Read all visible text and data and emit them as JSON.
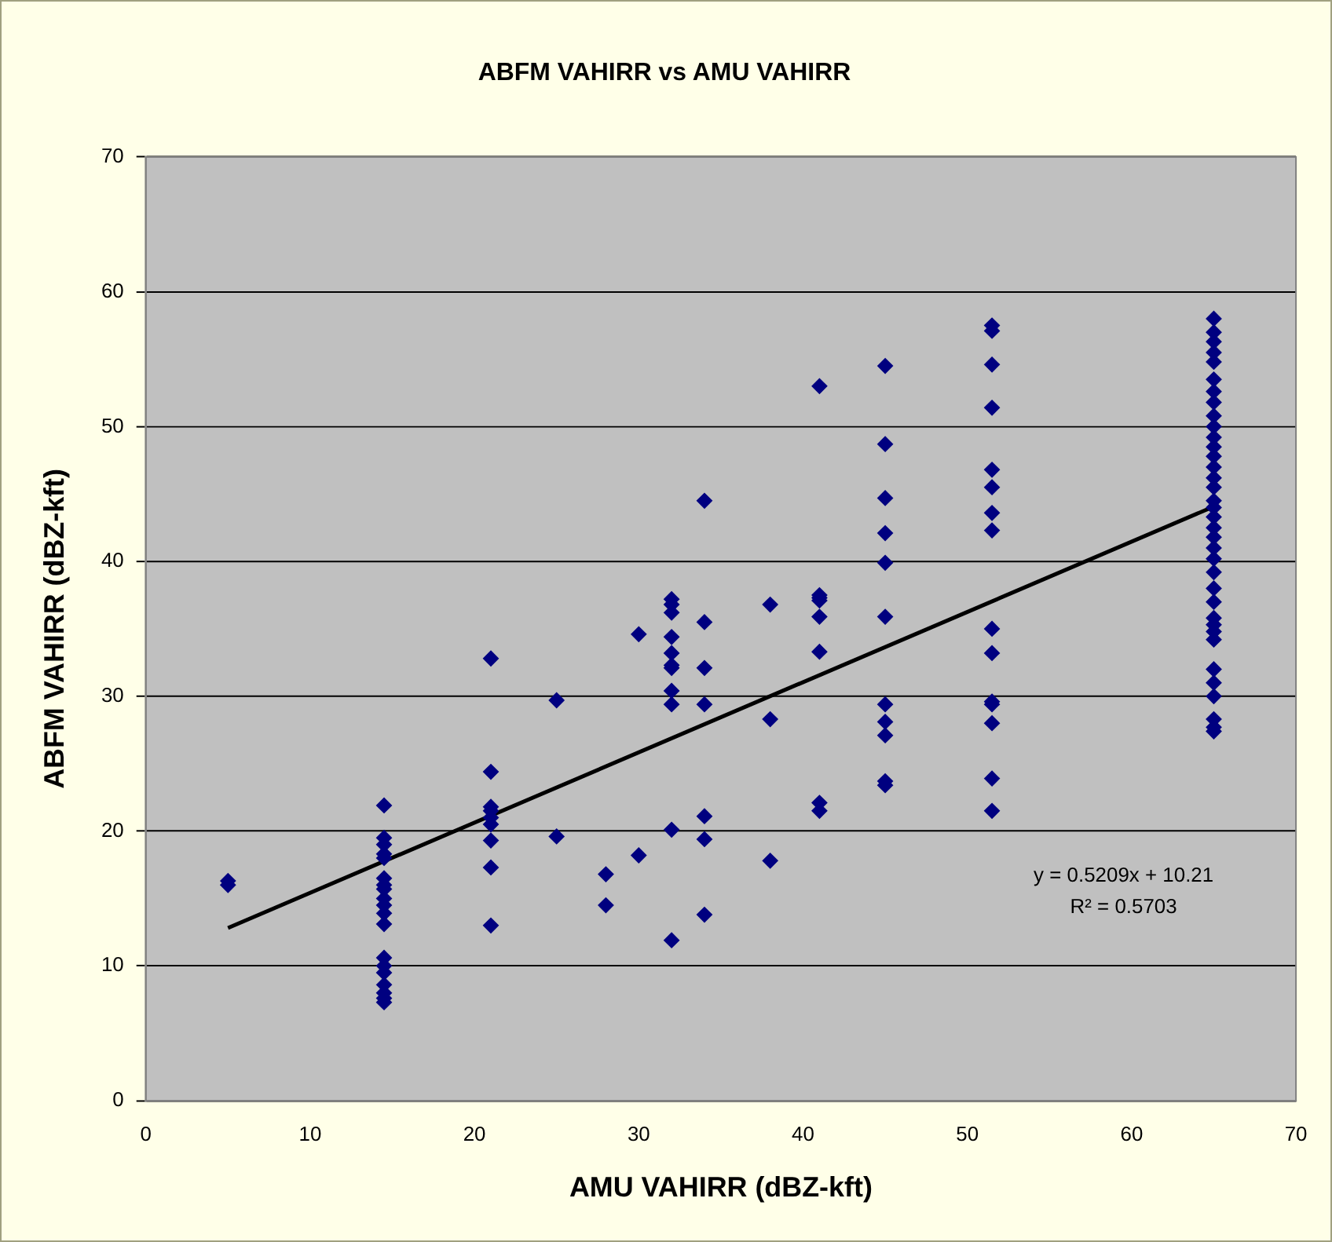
{
  "chart_data": {
    "type": "scatter",
    "title": "ABFM VAHIRR vs AMU VAHIRR",
    "xlabel": "AMU VAHIRR (dBZ-kft)",
    "ylabel": "ABFM VAHIRR (dBZ-kft)",
    "xlim": [
      0,
      70
    ],
    "xticks": [
      0,
      10,
      20,
      30,
      40,
      50,
      60,
      70
    ],
    "ylim": [
      0,
      70
    ],
    "yticks": [
      0,
      10,
      20,
      30,
      40,
      50,
      60,
      70
    ],
    "grid": "y",
    "legend": false,
    "marker": "diamond",
    "annotations": [
      "y = 0.5209x + 10.21",
      "R² = 0.5703"
    ],
    "series": [
      {
        "color": "#000080",
        "x": [
          5,
          5,
          14.5,
          14.5,
          14.5,
          14.5,
          14.5,
          14.5,
          14.5,
          14.5,
          14.5,
          14.5,
          14.5,
          14.5,
          14.5,
          14.5,
          14.5,
          14.5,
          14.5,
          14.5,
          14.5,
          21,
          21,
          21,
          21,
          21,
          21,
          21,
          21,
          21,
          25,
          25,
          28,
          28,
          30,
          30,
          32,
          32,
          32,
          32,
          32,
          32,
          32,
          32,
          32,
          32,
          32,
          34,
          34,
          34,
          34,
          34,
          34,
          34,
          38,
          38,
          38,
          41,
          41,
          41,
          41,
          41,
          41,
          41,
          41,
          45,
          45,
          45,
          45,
          45,
          45,
          45,
          45,
          45,
          45,
          45,
          51.5,
          51.5,
          51.5,
          51.5,
          51.5,
          51.5,
          51.5,
          51.5,
          51.5,
          51.5,
          51.5,
          51.5,
          51.5,
          51.5,
          51.5,
          65,
          65,
          65,
          65,
          65,
          65,
          65,
          65,
          65,
          65,
          65,
          65,
          65,
          65,
          65,
          65,
          65,
          65,
          65,
          65,
          65,
          65,
          65,
          65,
          65,
          65,
          65,
          65,
          65,
          65,
          65,
          65,
          65,
          65,
          65,
          65
        ],
        "values": [
          16.0,
          16.3,
          21.9,
          19.5,
          19,
          18.3,
          18,
          16.5,
          16,
          15.7,
          15,
          14.5,
          13.9,
          13.1,
          10.6,
          10,
          9.5,
          8.6,
          8,
          7.6,
          7.3,
          32.8,
          24.4,
          21.8,
          21.5,
          21,
          20.5,
          19.3,
          17.3,
          13,
          29.7,
          19.6,
          16.8,
          14.5,
          34.6,
          18.2,
          37.2,
          36.8,
          36.2,
          34.4,
          33.2,
          32.3,
          32.1,
          30.4,
          29.4,
          20.1,
          11.9,
          44.5,
          35.5,
          32.1,
          29.4,
          21.1,
          19.4,
          13.8,
          36.8,
          28.3,
          17.8,
          53,
          37.5,
          37.3,
          37.1,
          35.9,
          33.3,
          22.1,
          21.5,
          54.5,
          48.7,
          44.7,
          42.1,
          39.9,
          35.9,
          29.4,
          28.1,
          27.1,
          23.7,
          23.4,
          57.5,
          57.1,
          54.6,
          51.4,
          46.8,
          45.5,
          43.6,
          42.3,
          35,
          33.2,
          29.6,
          29.4,
          28,
          23.9,
          21.5,
          58,
          57,
          56.3,
          55.5,
          54.8,
          53.5,
          52.6,
          51.8,
          50.8,
          50,
          49.2,
          48.5,
          47.8,
          47,
          46.2,
          45.5,
          44.5,
          44,
          43.3,
          42.5,
          41.8,
          41,
          40.2,
          39.2,
          38,
          37,
          35.8,
          35.3,
          34.8,
          34.2,
          32,
          31,
          30,
          28.3,
          27.7,
          27.4
        ]
      },
      {
        "type": "line",
        "color": "#000000",
        "marker": "none",
        "x": [
          5,
          65
        ],
        "values": [
          12.81,
          44.07
        ]
      }
    ]
  }
}
